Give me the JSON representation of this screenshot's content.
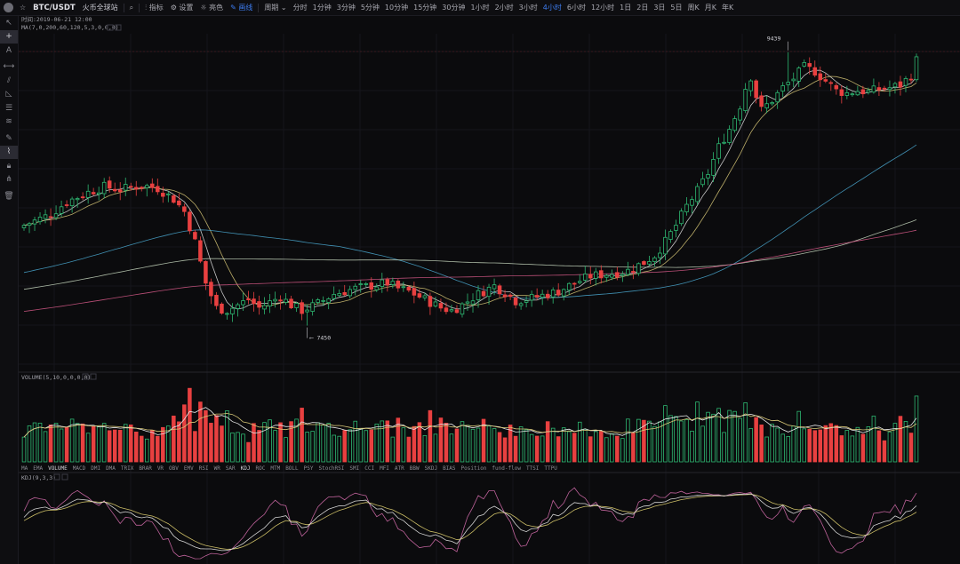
{
  "topbar": {
    "pair": "BTC/USDT",
    "exchange": "火币全球站",
    "buttons": [
      {
        "name": "indicators-button",
        "icon": "chart-icon",
        "label": "指标"
      },
      {
        "name": "settings-button",
        "icon": "gear-icon",
        "label": "设置"
      },
      {
        "name": "theme-button",
        "icon": "sun-icon",
        "label": "亮色"
      },
      {
        "name": "draw-button",
        "icon": "pen-icon",
        "label": "画线",
        "active": true
      }
    ],
    "period_label": "周期 ⌄",
    "periods": [
      "分时",
      "1分钟",
      "3分钟",
      "5分钟",
      "10分钟",
      "15分钟",
      "30分钟",
      "1小时",
      "2小时",
      "3小时",
      "4小时",
      "6小时",
      "12小时",
      "1日",
      "2日",
      "3日",
      "5日",
      "周K",
      "月K",
      "年K"
    ],
    "active_period": "4小时"
  },
  "sidebar_tools": [
    "cursor-arrow-icon",
    "crosshair-icon",
    "text-icon",
    "horizontal-line-icon",
    "fib-icon",
    "triangle-icon",
    "parallel-channel-icon",
    "wave-icon",
    "pencil-icon",
    "brush-icon",
    "lock-icon",
    "magnet-icon",
    "trash-icon"
  ],
  "price_panel": {
    "time_label": "时间:2019-06-21 12:00",
    "ma_label": "MA(7,0,200,60,120,5,3,0,0,0)",
    "high_label": "9439",
    "low_label": "7450"
  },
  "volume_panel": {
    "label": "VOLUME(5,10,0,0,0,0)"
  },
  "indicator_tabs": [
    "MA",
    "EMA",
    "VOLUME",
    "MACD",
    "DMI",
    "DMA",
    "TRIX",
    "BRAR",
    "VR",
    "OBV",
    "EMV",
    "RSI",
    "WR",
    "SAR",
    "KDJ",
    "ROC",
    "MTM",
    "BOLL",
    "PSY",
    "StochRSI",
    "SMI",
    "CCI",
    "MFI",
    "ATR",
    "BBW",
    "SKDJ",
    "BIAS",
    "Position",
    "fund-flow",
    "TTSI",
    "TTPU"
  ],
  "active_indicator_tabs": [
    "VOLUME",
    "KDJ"
  ],
  "kdj_panel": {
    "label": "KDJ(9,3,3)"
  },
  "colors": {
    "up": "#2eb872",
    "down": "#e84040",
    "ma7": "#e8e8e8",
    "ma30": "#d8c878",
    "ma60": "#4aa8d0",
    "ma120": "#c8d8c0",
    "ma200": "#d85a8a",
    "kdj_k": "#e8e8e8",
    "kdj_d": "#e0d070",
    "kdj_j": "#d06aa8",
    "accent": "#3d7cf0"
  },
  "chart_data": {
    "type": "candlestick",
    "title": "BTC/USDT",
    "interval": "4小时",
    "annotations": [
      {
        "label": "9439",
        "kind": "high"
      },
      {
        "label": "7450",
        "kind": "low"
      }
    ],
    "price_anchors": [
      7450,
      9439
    ],
    "close_path": [
      [
        0,
        8180
      ],
      [
        5,
        8260
      ],
      [
        8,
        8350
      ],
      [
        12,
        8420
      ],
      [
        15,
        8460
      ],
      [
        18,
        8440
      ],
      [
        22,
        8470
      ],
      [
        25,
        8450
      ],
      [
        28,
        8370
      ],
      [
        30,
        8280
      ],
      [
        32,
        8060
      ],
      [
        34,
        7760
      ],
      [
        36,
        7580
      ],
      [
        38,
        7560
      ],
      [
        40,
        7600
      ],
      [
        42,
        7640
      ],
      [
        44,
        7580
      ],
      [
        46,
        7620
      ],
      [
        48,
        7660
      ],
      [
        50,
        7600
      ],
      [
        52,
        7560
      ],
      [
        55,
        7610
      ],
      [
        58,
        7680
      ],
      [
        62,
        7720
      ],
      [
        65,
        7740
      ],
      [
        68,
        7760
      ],
      [
        70,
        7720
      ],
      [
        72,
        7700
      ],
      [
        75,
        7640
      ],
      [
        78,
        7580
      ],
      [
        80,
        7560
      ],
      [
        82,
        7600
      ],
      [
        85,
        7680
      ],
      [
        88,
        7740
      ],
      [
        90,
        7690
      ],
      [
        92,
        7630
      ],
      [
        95,
        7650
      ],
      [
        98,
        7680
      ],
      [
        100,
        7700
      ],
      [
        103,
        7760
      ],
      [
        106,
        7810
      ],
      [
        110,
        7830
      ],
      [
        113,
        7850
      ],
      [
        116,
        7910
      ],
      [
        118,
        7960
      ],
      [
        120,
        8060
      ],
      [
        122,
        8180
      ],
      [
        124,
        8320
      ],
      [
        126,
        8430
      ],
      [
        128,
        8560
      ],
      [
        130,
        8750
      ],
      [
        132,
        8880
      ],
      [
        134,
        9050
      ],
      [
        135,
        9180
      ],
      [
        136,
        9260
      ],
      [
        137,
        9120
      ],
      [
        138,
        9020
      ],
      [
        140,
        9090
      ],
      [
        142,
        9180
      ],
      [
        144,
        9250
      ],
      [
        146,
        9330
      ],
      [
        148,
        9300
      ],
      [
        150,
        9230
      ],
      [
        152,
        9160
      ],
      [
        154,
        9140
      ],
      [
        156,
        9160
      ],
      [
        158,
        9150
      ],
      [
        160,
        9170
      ],
      [
        162,
        9180
      ],
      [
        164,
        9200
      ],
      [
        166,
        9270
      ],
      [
        167,
        9380
      ]
    ],
    "candle_count": 168,
    "series": [
      {
        "name": "MA7"
      },
      {
        "name": "MA30"
      },
      {
        "name": "MA60"
      },
      {
        "name": "MA120"
      },
      {
        "name": "MA200"
      }
    ],
    "volume": {
      "series": [
        {
          "name": "VOLUME"
        },
        {
          "name": "MA5"
        },
        {
          "name": "MA10"
        }
      ]
    },
    "kdj": {
      "series": [
        {
          "name": "K"
        },
        {
          "name": "D"
        },
        {
          "name": "J"
        }
      ],
      "ylim": [
        0,
        100
      ]
    }
  }
}
